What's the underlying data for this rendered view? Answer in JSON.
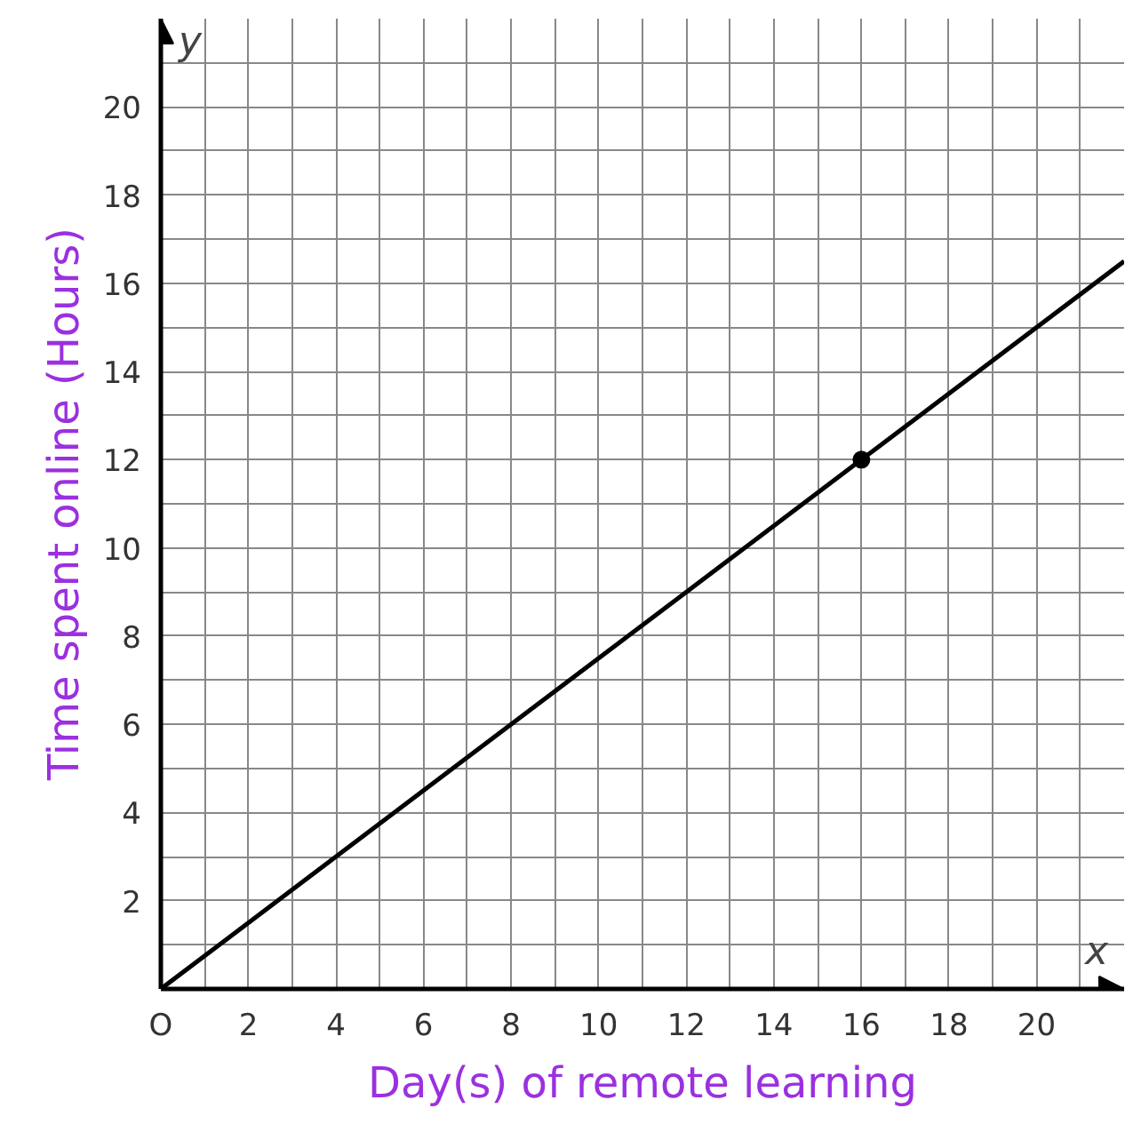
{
  "chart_data": {
    "type": "line",
    "xlabel": "Day(s) of remote learning",
    "ylabel": "Time spent online (Hours)",
    "annotations": [
      "x",
      "y"
    ],
    "series": [
      {
        "color": "#000000",
        "x": [
          0,
          16,
          22
        ],
        "values": [
          0,
          12,
          16.5
        ]
      },
      {
        "type": "scatter",
        "color": "#000000",
        "x": [
          16
        ],
        "values": [
          12
        ],
        "marker": "circle"
      }
    ],
    "xlim": [
      0,
      22
    ],
    "ylim": [
      0,
      22
    ],
    "xticks": [
      {
        "value": 0,
        "label": "O"
      },
      {
        "value": 1,
        "label": null
      },
      2,
      {
        "value": 3,
        "label": null
      },
      4,
      {
        "value": 5,
        "label": null
      },
      6,
      {
        "value": 7,
        "label": null
      },
      8,
      {
        "value": 9,
        "label": null
      },
      10,
      {
        "value": 11,
        "label": null
      },
      12,
      {
        "value": 13,
        "label": null
      },
      14,
      {
        "value": 15,
        "label": null
      },
      16,
      {
        "value": 17,
        "label": null
      },
      18,
      {
        "value": 19,
        "label": null
      },
      20,
      {
        "value": 21,
        "label": null
      }
    ],
    "yticks": [
      {
        "value": 1,
        "label": null
      },
      2,
      {
        "value": 3,
        "label": null
      },
      4,
      {
        "value": 5,
        "label": null
      },
      6,
      {
        "value": 7,
        "label": null
      },
      8,
      {
        "value": 9,
        "label": null
      },
      10,
      {
        "value": 11,
        "label": null
      },
      12,
      {
        "value": 13,
        "label": null
      },
      14,
      {
        "value": 15,
        "label": null
      },
      16,
      {
        "value": 17,
        "label": null
      },
      18,
      {
        "value": 19,
        "label": null
      },
      20,
      {
        "value": 21,
        "label": null
      }
    ],
    "grid": true
  }
}
